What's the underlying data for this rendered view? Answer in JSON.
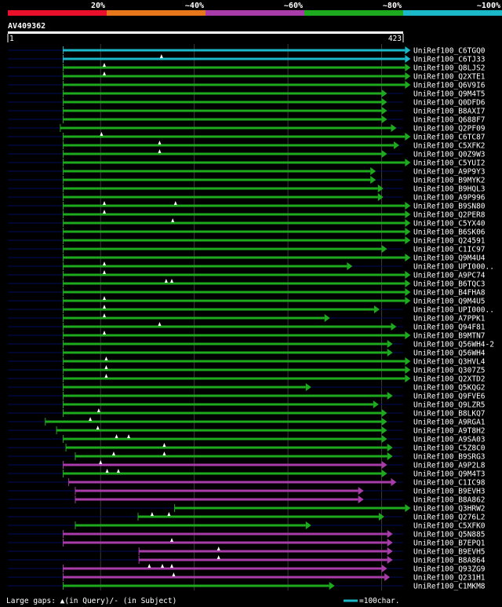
{
  "chart_data": {
    "type": "alignment-overview",
    "query_id": "AV409362",
    "query_length": 423,
    "axis_start": "1",
    "axis_end": "423",
    "identity_legend": [
      {
        "label": "20%",
        "color": "#e8102a"
      },
      {
        "label": "~40%",
        "color": "#e8761a"
      },
      {
        "label": "~60%",
        "color": "#a83ca8"
      },
      {
        "label": "~80%",
        "color": "#1eaa1e"
      },
      {
        "label": "~100%",
        "color": "#1ab8c8"
      }
    ],
    "hits": [
      {
        "name": "UniRef100_C6TGQ0",
        "start": 60,
        "end": 425,
        "color": "cyan",
        "gaps": []
      },
      {
        "name": "UniRef100_C6TJ33",
        "start": 60,
        "end": 425,
        "color": "cyan",
        "gaps": [
          165
        ]
      },
      {
        "name": "UniRef100_Q8LJS2",
        "start": 60,
        "end": 425,
        "color": "green",
        "gaps": [
          104
        ]
      },
      {
        "name": "UniRef100_Q2XTE1",
        "start": 60,
        "end": 425,
        "color": "green",
        "gaps": [
          104
        ]
      },
      {
        "name": "UniRef100_Q6V9I6",
        "start": 60,
        "end": 425,
        "color": "green",
        "gaps": []
      },
      {
        "name": "UniRef100_Q9M4T5",
        "start": 60,
        "end": 400,
        "color": "green",
        "gaps": []
      },
      {
        "name": "UniRef100_Q0DFD6",
        "start": 60,
        "end": 400,
        "color": "green",
        "gaps": []
      },
      {
        "name": "UniRef100_B8AXI7",
        "start": 60,
        "end": 400,
        "color": "green",
        "gaps": []
      },
      {
        "name": "UniRef100_Q688F7",
        "start": 60,
        "end": 400,
        "color": "green",
        "gaps": []
      },
      {
        "name": "UniRef100_Q2PF09",
        "start": 57,
        "end": 410,
        "color": "green",
        "gaps": []
      },
      {
        "name": "UniRef100_C6TC87",
        "start": 60,
        "end": 425,
        "color": "green",
        "gaps": [
          101
        ]
      },
      {
        "name": "UniRef100_C5XFK2",
        "start": 60,
        "end": 413,
        "color": "green",
        "gaps": [
          163
        ]
      },
      {
        "name": "UniRef100_Q0Z9W3",
        "start": 60,
        "end": 400,
        "color": "green",
        "gaps": [
          163
        ]
      },
      {
        "name": "UniRef100_C5YUI2",
        "start": 60,
        "end": 425,
        "color": "green",
        "gaps": []
      },
      {
        "name": "UniRef100_A9P9Y3",
        "start": 60,
        "end": 388,
        "color": "green",
        "gaps": []
      },
      {
        "name": "UniRef100_B9MYK2",
        "start": 60,
        "end": 388,
        "color": "green",
        "gaps": []
      },
      {
        "name": "UniRef100_B9HQL3",
        "start": 60,
        "end": 396,
        "color": "green",
        "gaps": []
      },
      {
        "name": "UniRef100_A9P996",
        "start": 60,
        "end": 396,
        "color": "green",
        "gaps": []
      },
      {
        "name": "UniRef100_B9SN80",
        "start": 60,
        "end": 425,
        "color": "green",
        "gaps": [
          104,
          180
        ]
      },
      {
        "name": "UniRef100_Q2PER8",
        "start": 60,
        "end": 425,
        "color": "green",
        "gaps": [
          104
        ]
      },
      {
        "name": "UniRef100_C5YX40",
        "start": 60,
        "end": 425,
        "color": "green",
        "gaps": [
          177
        ]
      },
      {
        "name": "UniRef100_B6SK06",
        "start": 60,
        "end": 425,
        "color": "green",
        "gaps": []
      },
      {
        "name": "UniRef100_Q24591",
        "start": 60,
        "end": 425,
        "color": "green",
        "gaps": []
      },
      {
        "name": "UniRef100_C1IC97",
        "start": 60,
        "end": 400,
        "color": "green",
        "gaps": []
      },
      {
        "name": "UniRef100_Q9M4U4",
        "start": 60,
        "end": 425,
        "color": "green",
        "gaps": []
      },
      {
        "name": "UniRef100_UPI000..",
        "start": 60,
        "end": 363,
        "color": "green",
        "gaps": [
          104
        ]
      },
      {
        "name": "UniRef100_A9PC74",
        "start": 60,
        "end": 425,
        "color": "green",
        "gaps": [
          104
        ]
      },
      {
        "name": "UniRef100_B6TQC3",
        "start": 60,
        "end": 425,
        "color": "green",
        "gaps": [
          170,
          176
        ]
      },
      {
        "name": "UniRef100_B4FHA8",
        "start": 60,
        "end": 425,
        "color": "green",
        "gaps": []
      },
      {
        "name": "UniRef100_Q9M4U5",
        "start": 60,
        "end": 425,
        "color": "green",
        "gaps": [
          104
        ]
      },
      {
        "name": "UniRef100_UPI000..",
        "start": 60,
        "end": 392,
        "color": "green",
        "gaps": [
          104
        ]
      },
      {
        "name": "UniRef100_A7PPK1",
        "start": 60,
        "end": 339,
        "color": "green",
        "gaps": [
          104
        ]
      },
      {
        "name": "UniRef100_Q94F81",
        "start": 60,
        "end": 410,
        "color": "green",
        "gaps": [
          163
        ]
      },
      {
        "name": "UniRef100_B9MTN7",
        "start": 60,
        "end": 425,
        "color": "green",
        "gaps": [
          104
        ]
      },
      {
        "name": "UniRef100_Q56WH4-2",
        "start": 60,
        "end": 406,
        "color": "green",
        "gaps": []
      },
      {
        "name": "UniRef100_Q56WH4",
        "start": 60,
        "end": 406,
        "color": "green",
        "gaps": []
      },
      {
        "name": "UniRef100_Q3HVL4",
        "start": 60,
        "end": 425,
        "color": "green",
        "gaps": [
          106
        ]
      },
      {
        "name": "UniRef100_Q307Z5",
        "start": 60,
        "end": 425,
        "color": "green",
        "gaps": [
          106
        ]
      },
      {
        "name": "UniRef100_Q2XTD2",
        "start": 60,
        "end": 425,
        "color": "green",
        "gaps": [
          106
        ]
      },
      {
        "name": "UniRef100_Q5KQG2",
        "start": 60,
        "end": 319,
        "color": "green",
        "gaps": []
      },
      {
        "name": "UniRef100_Q9FVE6",
        "start": 60,
        "end": 406,
        "color": "green",
        "gaps": []
      },
      {
        "name": "UniRef100_Q9LZR5",
        "start": 60,
        "end": 391,
        "color": "green",
        "gaps": []
      },
      {
        "name": "UniRef100_B8LKQ7",
        "start": 60,
        "end": 400,
        "color": "green",
        "gaps": [
          98
        ]
      },
      {
        "name": "UniRef100_A9RGA1",
        "start": 41,
        "end": 400,
        "color": "green",
        "gaps": [
          89
        ]
      },
      {
        "name": "UniRef100_A9T8H2",
        "start": 53,
        "end": 400,
        "color": "green",
        "gaps": [
          97
        ]
      },
      {
        "name": "UniRef100_A9SA03",
        "start": 60,
        "end": 400,
        "color": "green",
        "gaps": [
          117,
          130
        ]
      },
      {
        "name": "UniRef100_C5Z8C0",
        "start": 63,
        "end": 406,
        "color": "green",
        "gaps": [
          168
        ]
      },
      {
        "name": "UniRef100_B9SRG3",
        "start": 73,
        "end": 406,
        "color": "green",
        "gaps": [
          114,
          168
        ]
      },
      {
        "name": "UniRef100_A9P2L8",
        "start": 60,
        "end": 400,
        "color": "magenta",
        "gaps": [
          100
        ]
      },
      {
        "name": "UniRef100_Q9M4T3",
        "start": 60,
        "end": 400,
        "color": "green",
        "gaps": [
          107,
          119
        ]
      },
      {
        "name": "UniRef100_C1IC98",
        "start": 66,
        "end": 410,
        "color": "magenta",
        "gaps": []
      },
      {
        "name": "UniRef100_B9EVH3",
        "start": 73,
        "end": 375,
        "color": "magenta",
        "gaps": []
      },
      {
        "name": "UniRef100_B8A862",
        "start": 73,
        "end": 375,
        "color": "magenta",
        "gaps": []
      },
      {
        "name": "UniRef100_Q3HRW2",
        "start": 179,
        "end": 425,
        "color": "green",
        "gaps": []
      },
      {
        "name": "UniRef100_Q276L2",
        "start": 140,
        "end": 397,
        "color": "green",
        "gaps": [
          155,
          173
        ]
      },
      {
        "name": "UniRef100_C5XFK0",
        "start": 73,
        "end": 319,
        "color": "green",
        "gaps": []
      },
      {
        "name": "UniRef100_Q5N885",
        "start": 60,
        "end": 406,
        "color": "magenta",
        "gaps": []
      },
      {
        "name": "UniRef100_B7EPQ1",
        "start": 60,
        "end": 406,
        "color": "magenta",
        "gaps": [
          176
        ]
      },
      {
        "name": "UniRef100_B9EVH5",
        "start": 141,
        "end": 406,
        "color": "magenta",
        "gaps": [
          226
        ]
      },
      {
        "name": "UniRef100_B8A864",
        "start": 141,
        "end": 406,
        "color": "magenta",
        "gaps": [
          226
        ]
      },
      {
        "name": "UniRef100_Q93ZG9",
        "start": 60,
        "end": 400,
        "color": "magenta",
        "gaps": [
          152,
          166,
          176
        ]
      },
      {
        "name": "UniRef100_Q231H1",
        "start": 60,
        "end": 403,
        "color": "magenta",
        "gaps": [
          178
        ]
      },
      {
        "name": "UniRef100_C1MKM8",
        "start": 60,
        "end": 344,
        "color": "green",
        "gaps": []
      }
    ],
    "footer": {
      "gaps_label": "Large gaps: ▲(in Query)/- (in Subject)",
      "scale_label": "=100char."
    }
  }
}
